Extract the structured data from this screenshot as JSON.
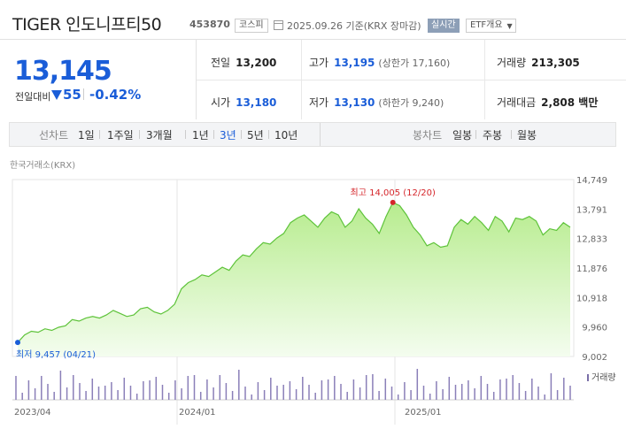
{
  "header": {
    "title": "TIGER 인도니프티50",
    "code": "453870",
    "market_badge": "코스피",
    "date_text": "2025.09.26 기준(KRX 장마감)",
    "live_badge": "실시간",
    "etf_button": "ETF개요"
  },
  "quote": {
    "price": "13,145",
    "change_label": "전일대비",
    "change_value": "55",
    "change_pct": "-0.42%"
  },
  "stats": {
    "prev_close_label": "전일",
    "prev_close": "13,200",
    "high_label": "고가",
    "high": "13,195",
    "high_limit": "(상한가 17,160)",
    "volume_label": "거래량",
    "volume": "213,305",
    "open_label": "시가",
    "open": "13,180",
    "low_label": "저가",
    "low": "13,130",
    "low_limit": "(하한가 9,240)",
    "amount_label": "거래대금",
    "amount": "2,808 백만"
  },
  "periods": {
    "line_label": "선차트",
    "line_items": [
      "1일",
      "1주일",
      "3개월",
      "1년",
      "3년",
      "5년",
      "10년"
    ],
    "active": "3년",
    "candle_label": "봉차트",
    "candle_items": [
      "일봉",
      "주봉",
      "월봉"
    ]
  },
  "chart_data": {
    "type": "area",
    "source_label": "한국거래소(KRX)",
    "y_ticks": [
      "14,749",
      "13,791",
      "12,833",
      "11,876",
      "10,918",
      "9,960",
      "9,002"
    ],
    "x_ticks": [
      "2023/04",
      "2024/01",
      "2025/01"
    ],
    "ylim": [
      9002,
      14749
    ],
    "high_label": "최고 14,005 (12/20)",
    "low_label": "최저 9,457 (04/21)",
    "volume_label": "거래량",
    "colors": {
      "line": "#5ec33a",
      "fill_top": "#b7ec8e",
      "fill_bottom": "#f4fdef",
      "high": "#d5262b",
      "low": "#1a5dd8",
      "volume": "#8a7fb8"
    },
    "series": [
      {
        "values": [
          9457,
          9700,
          9820,
          9790,
          9900,
          9850,
          9950,
          10000,
          10200,
          10150,
          10250,
          10300,
          10250,
          10350,
          10500,
          10400,
          10300,
          10350,
          10550,
          10600,
          10450,
          10380,
          10500,
          10700,
          11200,
          11400,
          11500,
          11650,
          11600,
          11750,
          11900,
          11800,
          12100,
          12300,
          12250,
          12500,
          12700,
          12650,
          12850,
          13000,
          13350,
          13500,
          13600,
          13400,
          13200,
          13500,
          13700,
          13600,
          13200,
          13400,
          13800,
          13500,
          13300,
          13000,
          13550,
          14005,
          13900,
          13600,
          13200,
          12950,
          12600,
          12700,
          12550,
          12600,
          13200,
          13450,
          13300,
          13550,
          13350,
          13100,
          13550,
          13400,
          13050,
          13500,
          13450,
          13550,
          13400,
          12950,
          13150,
          13100,
          13350,
          13200
        ]
      }
    ]
  }
}
